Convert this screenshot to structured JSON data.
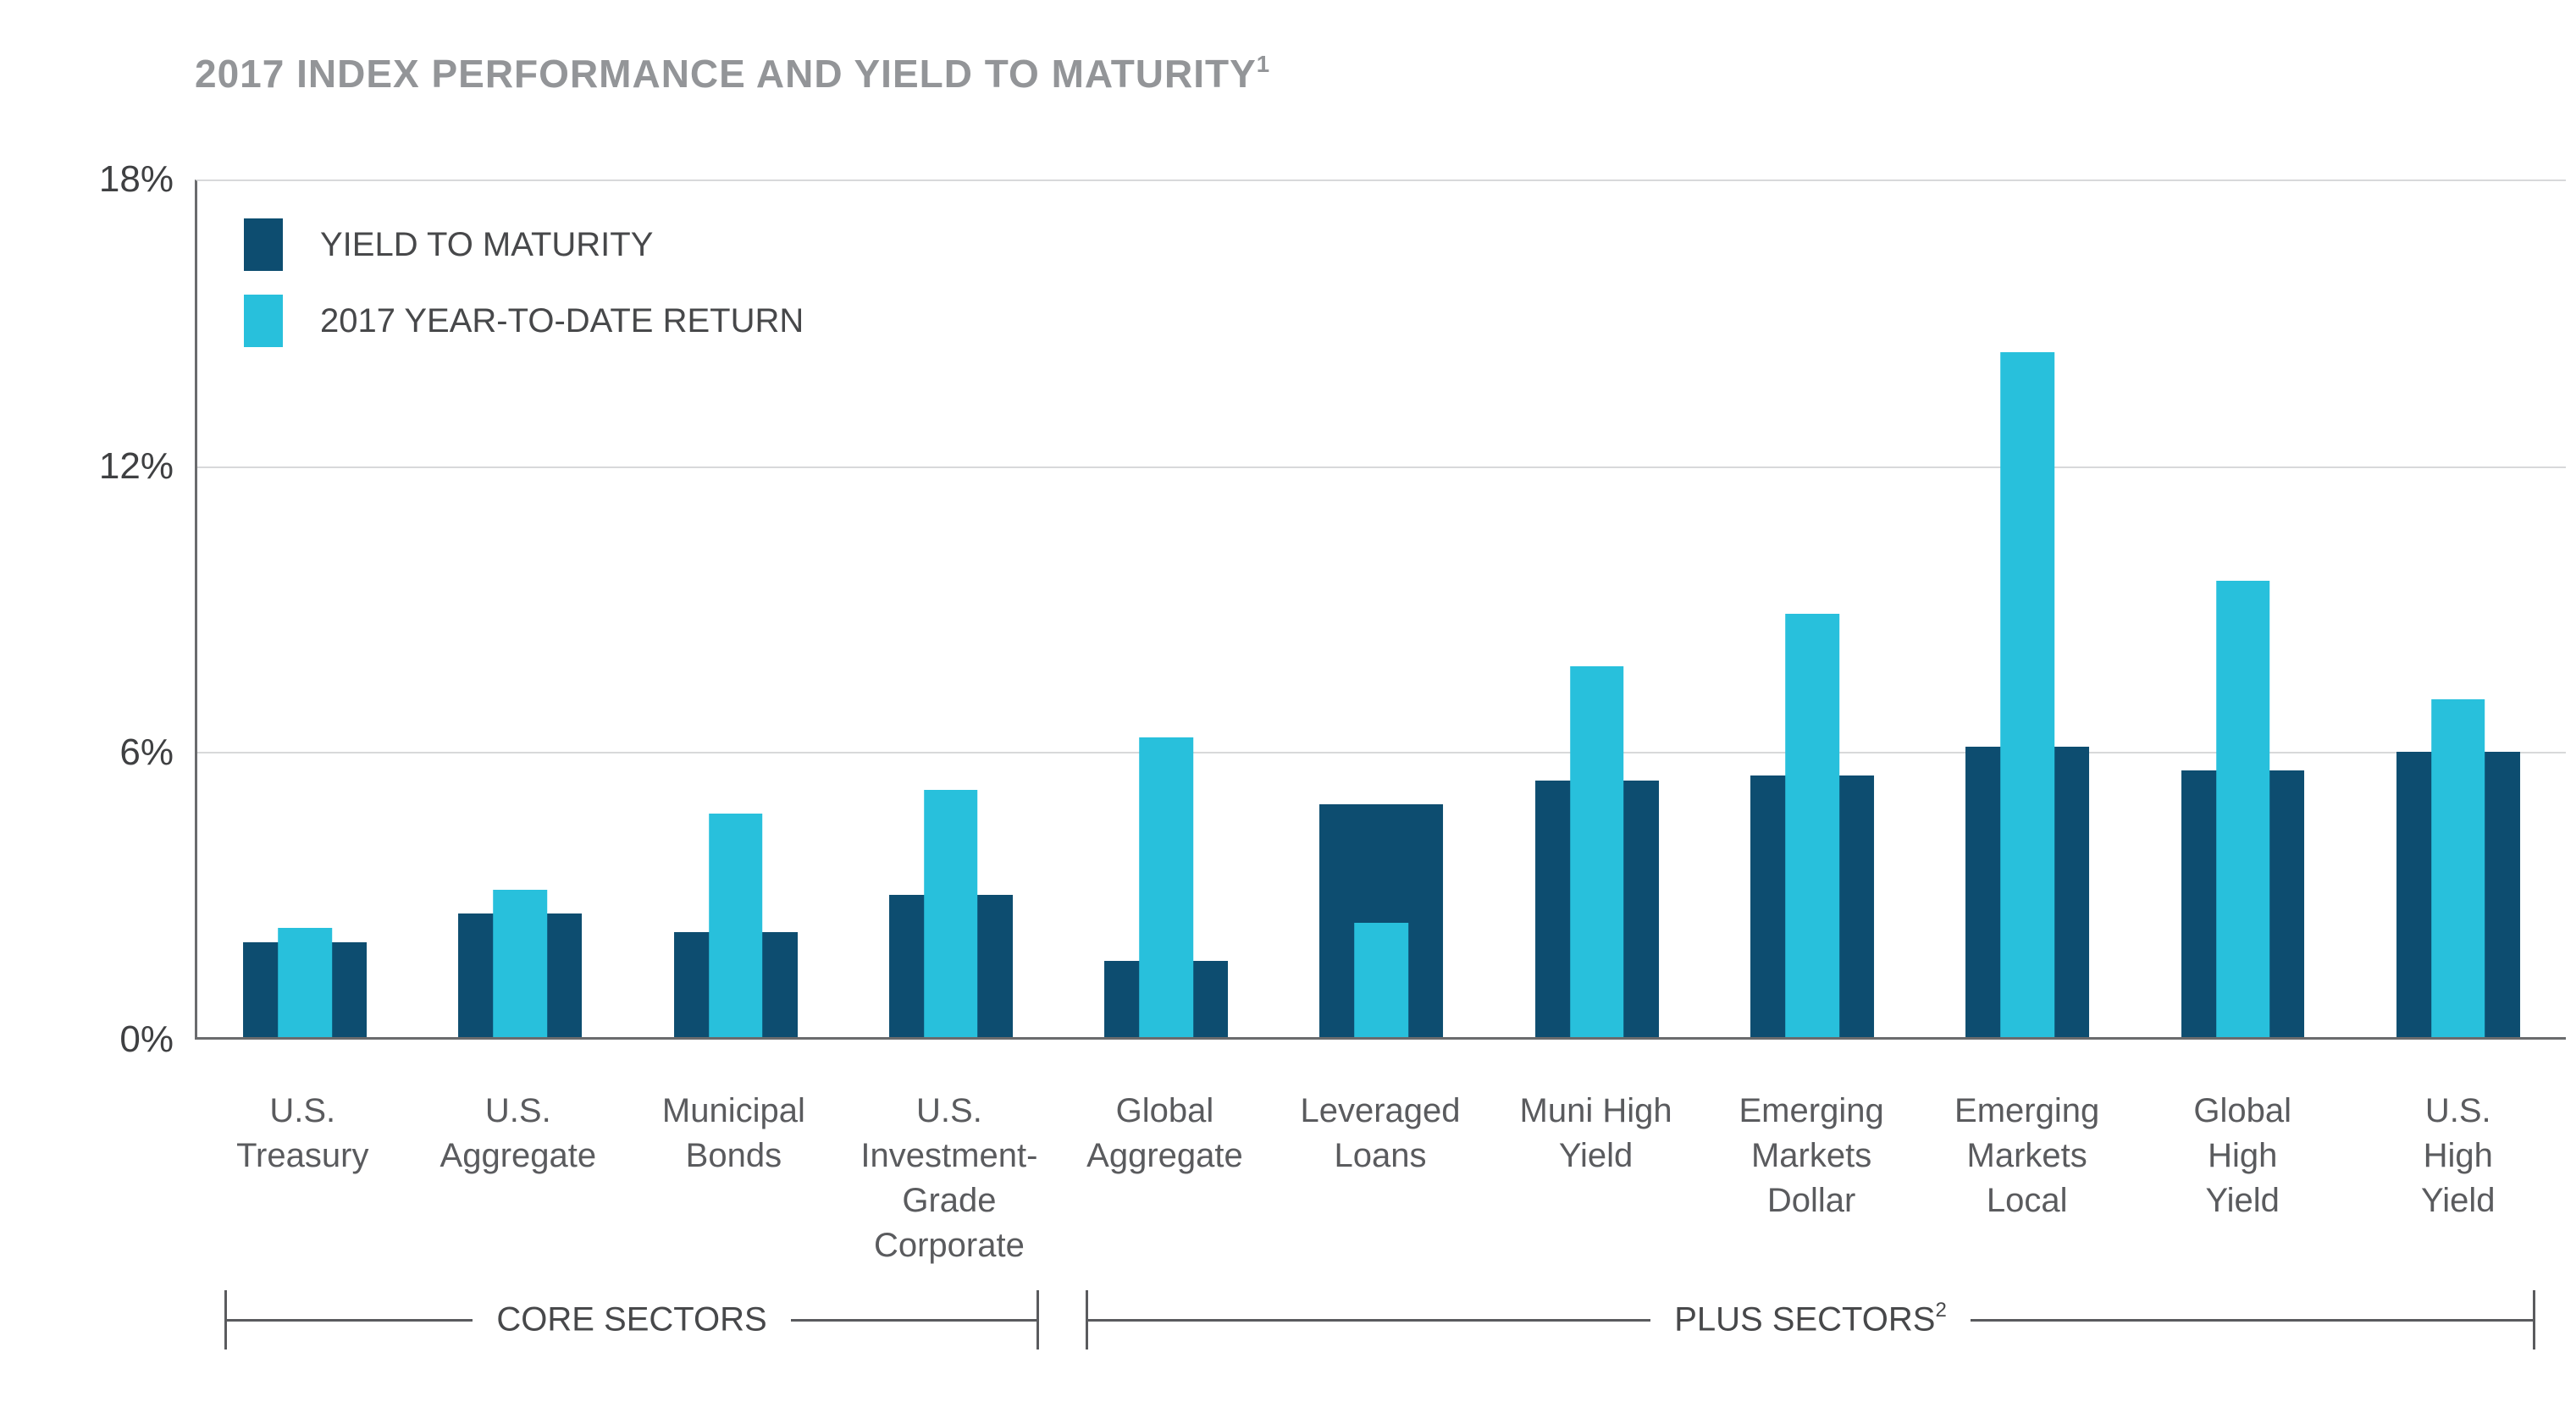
{
  "title": {
    "text": "2017 INDEX PERFORMANCE AND YIELD TO MATURITY",
    "superscript": "1"
  },
  "legend": [
    {
      "label": "YIELD TO MATURITY",
      "color": "#0d4d70"
    },
    {
      "label": "2017 YEAR-TO-DATE RETURN",
      "color": "#28c0dc"
    }
  ],
  "y_axis": {
    "ticks": [
      "18%",
      "12%",
      "6%",
      "0%"
    ],
    "max": 18,
    "min": 0
  },
  "chart_data": {
    "type": "bar",
    "title": "2017 INDEX PERFORMANCE AND YIELD TO MATURITY",
    "categories": [
      [
        "U.S.",
        "Treasury"
      ],
      [
        "U.S.",
        "Aggregate"
      ],
      [
        "Municipal",
        "Bonds"
      ],
      [
        "U.S.",
        "Investment-",
        "Grade",
        "Corporate"
      ],
      [
        "Global",
        "Aggregate"
      ],
      [
        "Leveraged",
        "Loans"
      ],
      [
        "Muni High",
        "Yield"
      ],
      [
        "Emerging",
        "Markets",
        "Dollar"
      ],
      [
        "Emerging",
        "Markets",
        "Local"
      ],
      [
        "Global",
        "High",
        "Yield"
      ],
      [
        "U.S.",
        "High",
        "Yield"
      ]
    ],
    "series": [
      {
        "name": "YIELD TO MATURITY",
        "color": "#0d4d70",
        "values": [
          2.0,
          2.6,
          2.2,
          3.0,
          1.6,
          4.9,
          5.4,
          5.5,
          6.1,
          5.6,
          6.0
        ]
      },
      {
        "name": "2017 YEAR-TO-DATE RETURN",
        "color": "#28c0dc",
        "values": [
          2.3,
          3.1,
          4.7,
          5.2,
          6.3,
          2.4,
          7.8,
          8.9,
          14.4,
          9.6,
          7.1
        ]
      }
    ],
    "ylim": [
      0,
      18
    ],
    "y_ticks_pct": [
      0,
      6,
      12,
      18
    ],
    "unit": "%",
    "grid": "horizontal",
    "legend_position": "top-left-inside"
  },
  "sector_groups": [
    {
      "label": "CORE SECTORS",
      "superscript": "",
      "categories_from": 0,
      "categories_to": 3
    },
    {
      "label": "PLUS SECTORS",
      "superscript": "2",
      "categories_from": 4,
      "categories_to": 10
    }
  ],
  "colors": {
    "ytm_bar": "#0d4d70",
    "ytd_bar": "#28c0dc",
    "title_text": "#939598",
    "axis_line": "#6a6b6d",
    "gridline": "#d8d9da",
    "tick_label": "#3f4042",
    "category_label": "#5a5b5e",
    "bracket_line": "#5a5b5e"
  }
}
